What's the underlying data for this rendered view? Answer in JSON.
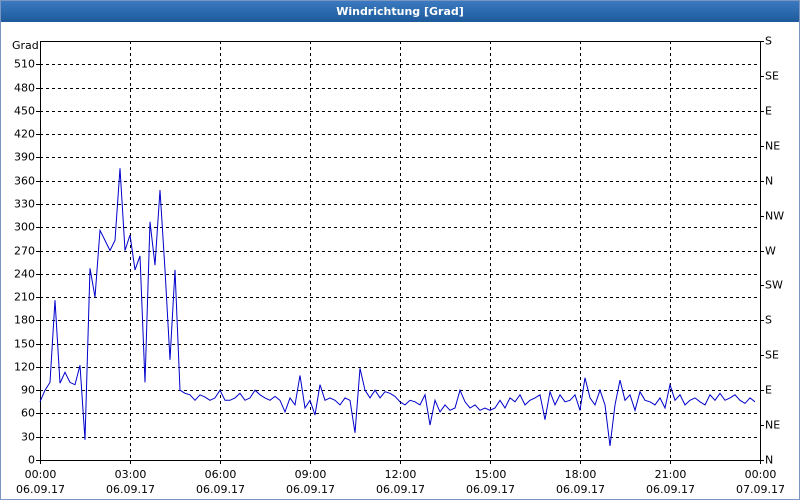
{
  "chart_data": {
    "type": "line",
    "title": "Windrichtung [Grad]",
    "ylabel": "Grad",
    "x": [
      0,
      10,
      20,
      30,
      40,
      50,
      60,
      70,
      80,
      90,
      100,
      110,
      120,
      130,
      140,
      150,
      160,
      170,
      180,
      190,
      200,
      210,
      220,
      230,
      240,
      250,
      260,
      270,
      280,
      290,
      300,
      310,
      320,
      330,
      340,
      350,
      360,
      370,
      380,
      390,
      400,
      410,
      420,
      430,
      440,
      450,
      460,
      470,
      480,
      490,
      500,
      510,
      520,
      530,
      540,
      550,
      560,
      570,
      580,
      590,
      600,
      610,
      620,
      630,
      640,
      650,
      660,
      670,
      680,
      690,
      700,
      710,
      720,
      730,
      740,
      750,
      760,
      770,
      780,
      790,
      800,
      810,
      820,
      830,
      840,
      850,
      860,
      870,
      880,
      890,
      900,
      910,
      920,
      930,
      940,
      950,
      960,
      970,
      980,
      990,
      1000,
      1010,
      1020,
      1030,
      1040,
      1050,
      1060,
      1070,
      1080,
      1090,
      1100,
      1110,
      1120,
      1130,
      1140,
      1150,
      1160,
      1170,
      1180,
      1190,
      1200,
      1210,
      1220,
      1230,
      1240,
      1250,
      1260,
      1270,
      1280,
      1290,
      1300,
      1310,
      1320,
      1330,
      1340,
      1350,
      1360,
      1370,
      1380,
      1390,
      1400,
      1410,
      1420,
      1430
    ],
    "series": [
      {
        "color": "#0000cc",
        "values": [
          75,
          90,
          100,
          206,
          99,
          113,
          100,
          97,
          122,
          26,
          247,
          210,
          296,
          283,
          270,
          283,
          376,
          270,
          290,
          245,
          263,
          100,
          307,
          251,
          348,
          245,
          129,
          245,
          90,
          86,
          84,
          77,
          84,
          81,
          77,
          80,
          90,
          77,
          77,
          80,
          86,
          77,
          80,
          90,
          84,
          80,
          77,
          82,
          77,
          62,
          80,
          71,
          109,
          67,
          77,
          58,
          97,
          77,
          80,
          77,
          71,
          80,
          77,
          35,
          118,
          90,
          80,
          90,
          80,
          88,
          86,
          82,
          75,
          71,
          77,
          75,
          71,
          84,
          45,
          77,
          62,
          71,
          64,
          67,
          90,
          75,
          67,
          71,
          64,
          67,
          64,
          67,
          77,
          67,
          80,
          75,
          84,
          71,
          77,
          80,
          84,
          52,
          88,
          71,
          84,
          75,
          77,
          84,
          64,
          106,
          80,
          71,
          90,
          71,
          18,
          71,
          103,
          77,
          84,
          64,
          88,
          77,
          75,
          71,
          80,
          67,
          97,
          77,
          84,
          71,
          77,
          80,
          75,
          71,
          84,
          77,
          86,
          77,
          80,
          84,
          77,
          73,
          80,
          75
        ]
      }
    ],
    "xlim": [
      0,
      1440
    ],
    "xticks": [
      {
        "value": 0,
        "label": "00:00",
        "date": "06.09.17"
      },
      {
        "value": 180,
        "label": "03:00",
        "date": "06.09.17"
      },
      {
        "value": 360,
        "label": "06:00",
        "date": "06.09.17"
      },
      {
        "value": 540,
        "label": "09:00",
        "date": "06.09.17"
      },
      {
        "value": 720,
        "label": "12:00",
        "date": "06.09.17"
      },
      {
        "value": 900,
        "label": "15:00",
        "date": "06.09.17"
      },
      {
        "value": 1080,
        "label": "18:00",
        "date": "06.09.17"
      },
      {
        "value": 1260,
        "label": "21:00",
        "date": "06.09.17"
      },
      {
        "value": 1440,
        "label": "00:00",
        "date": "07.09.17"
      }
    ],
    "ylim": [
      0,
      540
    ],
    "yticks": [
      0,
      30,
      60,
      90,
      120,
      150,
      180,
      210,
      240,
      270,
      300,
      330,
      360,
      390,
      420,
      450,
      480,
      510
    ],
    "y2lim": [
      0,
      540
    ],
    "y2ticks": [
      {
        "value": 0,
        "label": "N"
      },
      {
        "value": 45,
        "label": "NE"
      },
      {
        "value": 90,
        "label": "E"
      },
      {
        "value": 135,
        "label": "SE"
      },
      {
        "value": 180,
        "label": "S"
      },
      {
        "value": 225,
        "label": "SW"
      },
      {
        "value": 270,
        "label": "W"
      },
      {
        "value": 315,
        "label": "NW"
      },
      {
        "value": 360,
        "label": "N"
      },
      {
        "value": 405,
        "label": "NE"
      },
      {
        "value": 450,
        "label": "E"
      },
      {
        "value": 495,
        "label": "SE"
      },
      {
        "value": 540,
        "label": "S"
      }
    ],
    "grid": true
  }
}
